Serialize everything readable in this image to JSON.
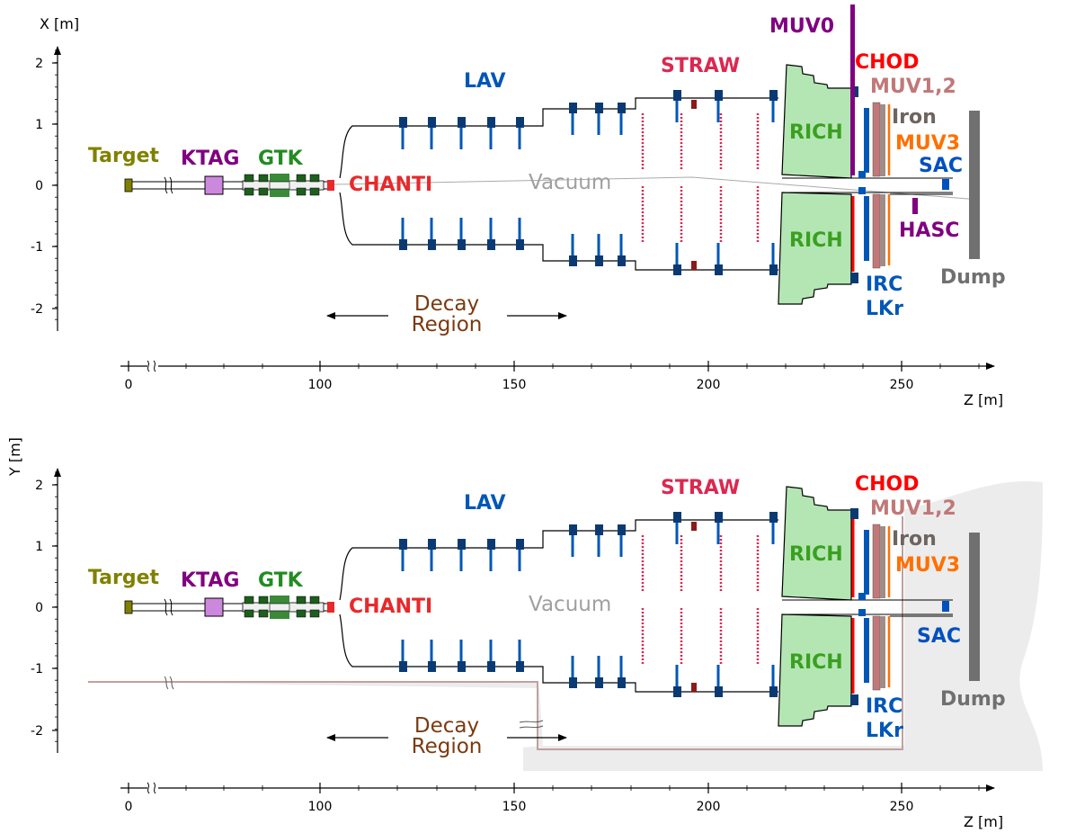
{
  "panels": [
    {
      "id": "top",
      "axis_vertical": "X [m]",
      "axis_horizontal": "Z [m]",
      "vertical_ticks": [
        "2",
        "1",
        "0",
        "-1",
        "-2"
      ],
      "horizontal_ticks": [
        "0",
        "100",
        "150",
        "200",
        "250"
      ],
      "labels": {
        "target": "Target",
        "ktag": "KTAG",
        "gtk": "GTK",
        "chanti": "CHANTI",
        "lav": "LAV",
        "straw": "STRAW",
        "vacuum": "Vacuum",
        "decay1": "Decay",
        "decay2": "Region",
        "rich_top": "RICH",
        "rich_bottom": "RICH",
        "muv0": "MUV0",
        "chod": "CHOD",
        "muv12": "MUV1,2",
        "iron": "Iron",
        "muv3": "MUV3",
        "sac": "SAC",
        "hasc": "HASC",
        "irc": "IRC",
        "lkr": "LKr",
        "dump": "Dump"
      }
    },
    {
      "id": "bottom",
      "axis_vertical": "Y [m]",
      "axis_horizontal": "Z [m]",
      "vertical_ticks": [
        "2",
        "1",
        "0",
        "-1",
        "-2"
      ],
      "horizontal_ticks": [
        "0",
        "100",
        "150",
        "200",
        "250"
      ],
      "labels": {
        "target": "Target",
        "ktag": "KTAG",
        "gtk": "GTK",
        "chanti": "CHANTI",
        "lav": "LAV",
        "straw": "STRAW",
        "vacuum": "Vacuum",
        "decay1": "Decay",
        "decay2": "Region",
        "rich_top": "RICH",
        "rich_bottom": "RICH",
        "chod": "CHOD",
        "muv12": "MUV1,2",
        "iron": "Iron",
        "muv3": "MUV3",
        "sac": "SAC",
        "irc": "IRC",
        "lkr": "LKr",
        "dump": "Dump"
      }
    }
  ],
  "colors": {
    "target": "#808000",
    "ktag": "#800080",
    "gtk": "#228b22",
    "chanti": "#e8292b",
    "lav": "#0057b7",
    "lav_block": "#0b3a73",
    "straw": "#dc2850",
    "vacuum": "#a0a0a0",
    "decay": "#7a3a10",
    "rich_text": "#3aa020",
    "rich_fill": "#b4e6b4",
    "muv0": "#800080",
    "chod": "#ff0000",
    "muv12": "#c07878",
    "iron": "#6e6460",
    "muv3": "#ff7000",
    "sac": "#0050c0",
    "hasc": "#800080",
    "irc": "#0057b7",
    "lkr": "#0057b7",
    "dump": "#707070",
    "cavern": "#ececec",
    "cavern_outline": "#c0a0a0"
  }
}
